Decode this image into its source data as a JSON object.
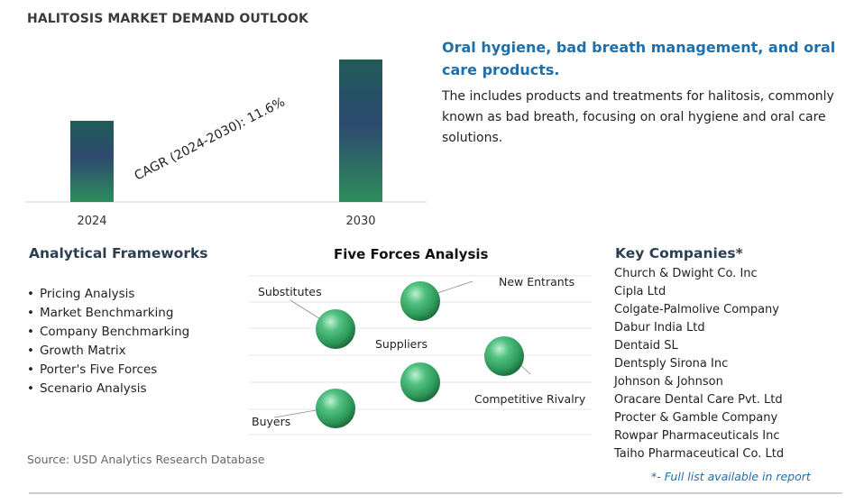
{
  "header": {
    "title": "HALITOSIS MARKET DEMAND OUTLOOK"
  },
  "chart_data": {
    "type": "bar",
    "categories": [
      "2024",
      "2030"
    ],
    "relative_heights": [
      0.57,
      1.0
    ],
    "annotation": {
      "label": "CAGR (2024-2030):",
      "value": "11.6%"
    },
    "colors": {
      "bar_top": "#1f5c57",
      "bar_mid": "#2e4a70",
      "bar_bottom": "#2e8d5c"
    },
    "grid": false,
    "legend": "none"
  },
  "description": {
    "heading": "Oral hygiene, bad breath management, and oral care products.",
    "body": "The includes products and treatments for halitosis, commonly known as bad breath, focusing on oral hygiene and oral care solutions."
  },
  "analytical_frameworks": {
    "title": "Analytical Frameworks",
    "items": [
      "Pricing Analysis",
      "Market Benchmarking",
      "Company Benchmarking",
      "Growth Matrix",
      "Porter's Five Forces",
      "Scenario Analysis"
    ]
  },
  "five_forces": {
    "title": "Five Forces Analysis",
    "labels": {
      "substitutes": "Substitutes",
      "new_entrants": "New Entrants",
      "suppliers": "Suppliers",
      "competitive_rivalry": "Competitive Rivalry",
      "buyers": "Buyers"
    },
    "sphere_color": "#2e9a5a"
  },
  "key_companies": {
    "title": "Key Companies*",
    "items": [
      "Church & Dwight Co. Inc",
      "Cipla Ltd",
      "Colgate-Palmolive Company",
      "Dabur India Ltd",
      "Dentaid SL",
      "Dentsply Sirona Inc",
      "Johnson & Johnson",
      "Oracare Dental Care Pvt. Ltd",
      "Procter & Gamble Company",
      "Rowpar Pharmaceuticals Inc",
      "Taiho Pharmaceutical Co. Ltd"
    ],
    "note": "*- Full list available in report"
  },
  "footer": {
    "source": "Source: USD Analytics Research Database"
  }
}
